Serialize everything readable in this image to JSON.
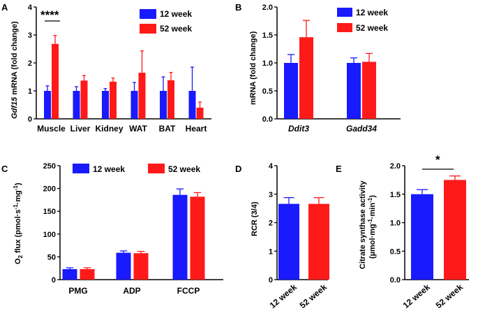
{
  "colors": {
    "week12": "#1a1aff",
    "week52": "#ff1a1a",
    "axis": "#000000"
  },
  "legend": {
    "week12": "12 week",
    "week52": "52 week"
  },
  "panels": {
    "A": "A",
    "B": "B",
    "C": "C",
    "D": "D",
    "E": "E"
  },
  "chart_data": [
    {
      "id": "A",
      "type": "bar",
      "title": "",
      "ylabel_gene": "Gdf15",
      "ylabel_rest": " mRNA (fold change)",
      "ylim": [
        0,
        4
      ],
      "yticks": [
        "0",
        "1",
        "2",
        "3",
        "4"
      ],
      "categories": [
        "Muscle",
        "Liver",
        "Kidney",
        "WAT",
        "BAT",
        "Heart"
      ],
      "series": [
        {
          "name": "12 week",
          "values": [
            1.0,
            1.0,
            1.0,
            1.0,
            1.0,
            1.0
          ],
          "errors": [
            0.18,
            0.15,
            0.08,
            0.3,
            0.5,
            0.85
          ]
        },
        {
          "name": "52 week",
          "values": [
            2.68,
            1.37,
            1.33,
            1.65,
            1.38,
            0.4
          ],
          "errors": [
            0.3,
            0.18,
            0.13,
            0.78,
            0.28,
            0.2
          ]
        }
      ],
      "annotation": "****"
    },
    {
      "id": "B",
      "type": "bar",
      "ylabel": "mRNA (fold change)",
      "ylim": [
        0,
        2.0
      ],
      "yticks": [
        "0.0",
        "0.5",
        "1.0",
        "1.5",
        "2.0"
      ],
      "categories": [
        "Ddit3",
        "Gadd34"
      ],
      "series": [
        {
          "name": "12 week",
          "values": [
            1.0,
            1.0
          ],
          "errors": [
            0.15,
            0.09
          ]
        },
        {
          "name": "52 week",
          "values": [
            1.46,
            1.02
          ],
          "errors": [
            0.3,
            0.15
          ]
        }
      ]
    },
    {
      "id": "C",
      "type": "bar",
      "ylabel_pre": "O",
      "ylabel_sub": "2",
      "ylabel_mid": " flux (pmol·s",
      "ylabel_sup1": "-1",
      "ylabel_mid2": "·mg",
      "ylabel_sup2": "-1",
      "ylabel_post": ")",
      "ylim": [
        0,
        250
      ],
      "yticks": [
        "0",
        "50",
        "100",
        "150",
        "200",
        "250"
      ],
      "categories": [
        "PMG",
        "ADP",
        "FCCP"
      ],
      "series": [
        {
          "name": "12 week",
          "values": [
            23,
            59,
            186
          ],
          "errors": [
            3,
            4,
            13
          ]
        },
        {
          "name": "52 week",
          "values": [
            23,
            58,
            182
          ],
          "errors": [
            3,
            4,
            9
          ]
        }
      ]
    },
    {
      "id": "D",
      "type": "bar",
      "ylabel": "RCR (3/4)",
      "ylim": [
        0,
        4
      ],
      "yticks": [
        "0",
        "1",
        "2",
        "3",
        "4"
      ],
      "categories": [
        "12 week",
        "52 week"
      ],
      "values": [
        2.66,
        2.66
      ],
      "errors": [
        0.22,
        0.22
      ]
    },
    {
      "id": "E",
      "type": "bar",
      "ylabel_pre": "Citrate synthase activity",
      "ylabel_l2_pre": "(µmol·mg",
      "ylabel_l2_sup1": "-1",
      "ylabel_l2_mid": "·min",
      "ylabel_l2_sup2": "-1",
      "ylabel_l2_post": ")",
      "ylim": [
        0,
        2.0
      ],
      "yticks": [
        "0.0",
        "0.5",
        "1.0",
        "1.5",
        "2.0"
      ],
      "categories": [
        "12 week",
        "52 week"
      ],
      "values": [
        1.5,
        1.75
      ],
      "errors": [
        0.08,
        0.07
      ],
      "annotation": "*"
    }
  ]
}
